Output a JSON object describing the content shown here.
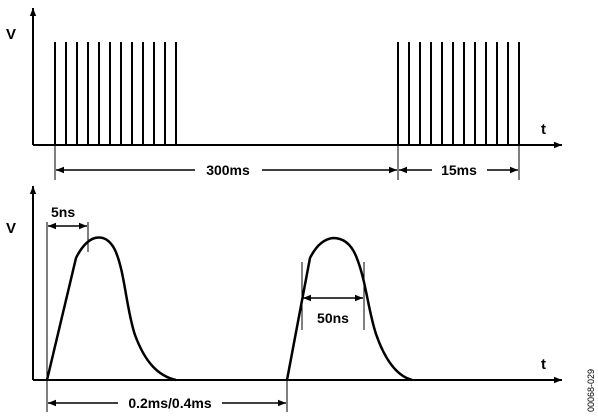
{
  "top_diagram": {
    "y_axis_label": "V",
    "x_axis_label": "t",
    "period_label": "300ms",
    "burst_label": "15ms"
  },
  "bottom_diagram": {
    "y_axis_label": "V",
    "x_axis_label": "t",
    "rise_time_label": "5ns",
    "pulse_width_label": "50ns",
    "spacing_label": "0.2ms/0.4ms"
  },
  "figure_id": "00068-029"
}
